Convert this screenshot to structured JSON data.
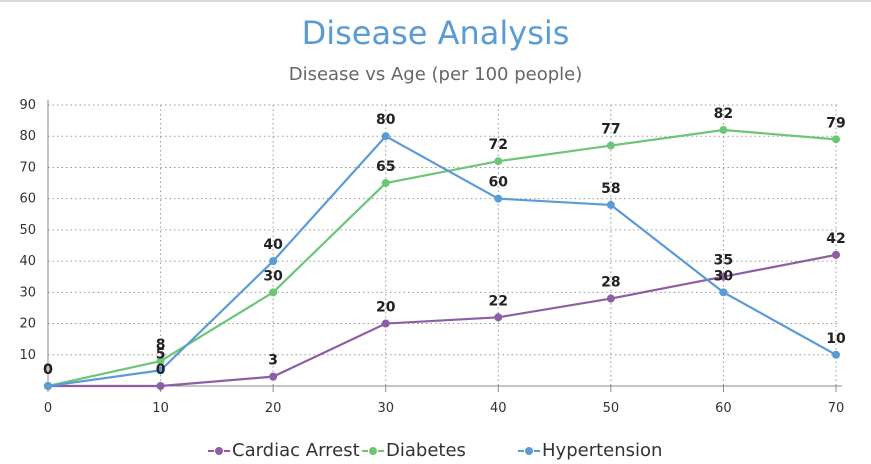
{
  "chart_data": {
    "type": "line",
    "title": "Disease Analysis",
    "subtitle": "Disease vs Age (per 100 people)",
    "xlabel": "",
    "ylabel": "",
    "x": [
      0,
      10,
      20,
      30,
      40,
      50,
      60,
      70
    ],
    "xlim": [
      0,
      70
    ],
    "ylim": [
      0,
      90
    ],
    "yticks": [
      10,
      20,
      30,
      40,
      50,
      60,
      70,
      80,
      90
    ],
    "grid": true,
    "legend_position": "bottom",
    "series": [
      {
        "name": "Cardiac Arrest",
        "color": "#8e5ea2",
        "values": [
          0,
          0,
          3,
          20,
          22,
          28,
          35,
          42
        ]
      },
      {
        "name": "Diabetes",
        "color": "#6cc676",
        "values": [
          0,
          8,
          30,
          65,
          72,
          77,
          82,
          79
        ]
      },
      {
        "name": "Hypertension",
        "color": "#5b9bd5",
        "values": [
          0,
          5,
          40,
          80,
          60,
          58,
          30,
          10
        ]
      }
    ]
  }
}
